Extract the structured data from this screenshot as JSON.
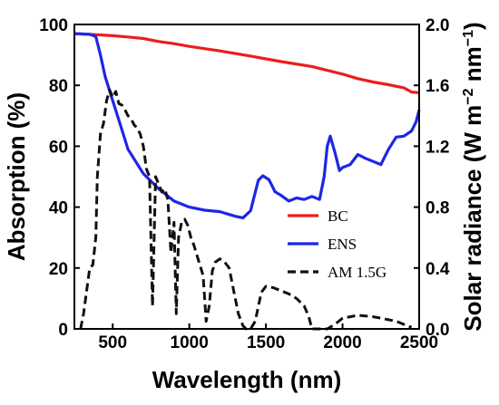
{
  "chart_data": {
    "type": "line",
    "xlabel": "Wavelength (nm)",
    "ylabel_left": "Absorption (%)",
    "ylabel_right": {
      "base": "Solar radiance (W m",
      "sup1": "−2",
      "mid": " nm",
      "sup2": "−1",
      "end": ")"
    },
    "xlim": [
      250,
      2500
    ],
    "ylim_left": [
      0,
      100
    ],
    "ylim_right": [
      0,
      2.0
    ],
    "xticks": [
      500,
      1000,
      1500,
      2000,
      2500
    ],
    "yticks_left": [
      0,
      20,
      40,
      60,
      80,
      100
    ],
    "yticks_right": [
      "0.0",
      "0.4",
      "0.8",
      "1.2",
      "1.6",
      "2.0"
    ],
    "legend_position": "lower-right",
    "series": [
      {
        "name": "BC",
        "color": "#ee1c1c",
        "axis": "left",
        "style": "solid",
        "x": [
          250,
          400,
          500,
          600,
          700,
          800,
          900,
          1000,
          1200,
          1400,
          1600,
          1800,
          2000,
          2100,
          2200,
          2300,
          2400,
          2450,
          2500
        ],
        "y": [
          97,
          96.6,
          96.3,
          95.9,
          95.4,
          94.4,
          93.7,
          92.8,
          91.3,
          89.6,
          87.8,
          86.2,
          83.7,
          82.2,
          81.1,
          80.2,
          79.2,
          77.8,
          77.6
        ]
      },
      {
        "name": "ENS",
        "color": "#1f26e6",
        "axis": "left",
        "style": "solid",
        "x": [
          250,
          350,
          390,
          420,
          450,
          500,
          550,
          600,
          700,
          800,
          900,
          1000,
          1100,
          1200,
          1300,
          1350,
          1400,
          1450,
          1480,
          1520,
          1560,
          1600,
          1650,
          1700,
          1750,
          1800,
          1850,
          1880,
          1900,
          1920,
          1950,
          1980,
          2000,
          2050,
          2100,
          2150,
          2200,
          2250,
          2300,
          2350,
          2400,
          2450,
          2480,
          2500
        ],
        "y": [
          97,
          96.8,
          96,
          90,
          83,
          75,
          67,
          59,
          51,
          46,
          42,
          40,
          39,
          38.5,
          37,
          36.5,
          38.8,
          48.8,
          50.3,
          49,
          45,
          43.8,
          42,
          43,
          42.5,
          43.5,
          42.5,
          50,
          60,
          63.3,
          58,
          52,
          53,
          54,
          57.3,
          56,
          55,
          54,
          59,
          63,
          63.3,
          65,
          68,
          72
        ]
      },
      {
        "name": "AM 1.5G",
        "color": "#111111",
        "axis": "right",
        "style": "dashed",
        "x": [
          290,
          310,
          330,
          350,
          370,
          390,
          400,
          420,
          440,
          460,
          480,
          500,
          520,
          540,
          560,
          580,
          600,
          620,
          640,
          660,
          680,
          700,
          720,
          740,
          760,
          780,
          800,
          820,
          840,
          860,
          880,
          900,
          915,
          930,
          950,
          970,
          990,
          1010,
          1030,
          1060,
          1090,
          1110,
          1130,
          1150,
          1170,
          1200,
          1230,
          1260,
          1290,
          1320,
          1350,
          1370,
          1400,
          1430,
          1470,
          1500,
          1550,
          1600,
          1650,
          1700,
          1750,
          1780,
          1800,
          1820,
          1840,
          1860,
          1900,
          1950,
          2000,
          2050,
          2100,
          2150,
          2200,
          2250,
          2300,
          2350,
          2400,
          2450
        ],
        "y": [
          0,
          0.1,
          0.25,
          0.4,
          0.42,
          0.6,
          1.0,
          1.28,
          1.35,
          1.5,
          1.57,
          1.52,
          1.56,
          1.48,
          1.47,
          1.44,
          1.4,
          1.38,
          1.34,
          1.32,
          1.28,
          1.2,
          1.05,
          1.0,
          0.15,
          1.0,
          0.95,
          0.9,
          0.92,
          0.85,
          0.5,
          0.7,
          0.1,
          0.6,
          0.7,
          0.72,
          0.68,
          0.6,
          0.55,
          0.45,
          0.35,
          0.05,
          0.15,
          0.38,
          0.44,
          0.46,
          0.44,
          0.4,
          0.25,
          0.1,
          0.02,
          0,
          0,
          0.05,
          0.24,
          0.28,
          0.27,
          0.25,
          0.23,
          0.2,
          0.15,
          0.08,
          0,
          0,
          0,
          0,
          0,
          0.03,
          0.07,
          0.08,
          0.09,
          0.085,
          0.08,
          0.07,
          0.06,
          0.05,
          0.03,
          0.01
        ]
      }
    ]
  }
}
